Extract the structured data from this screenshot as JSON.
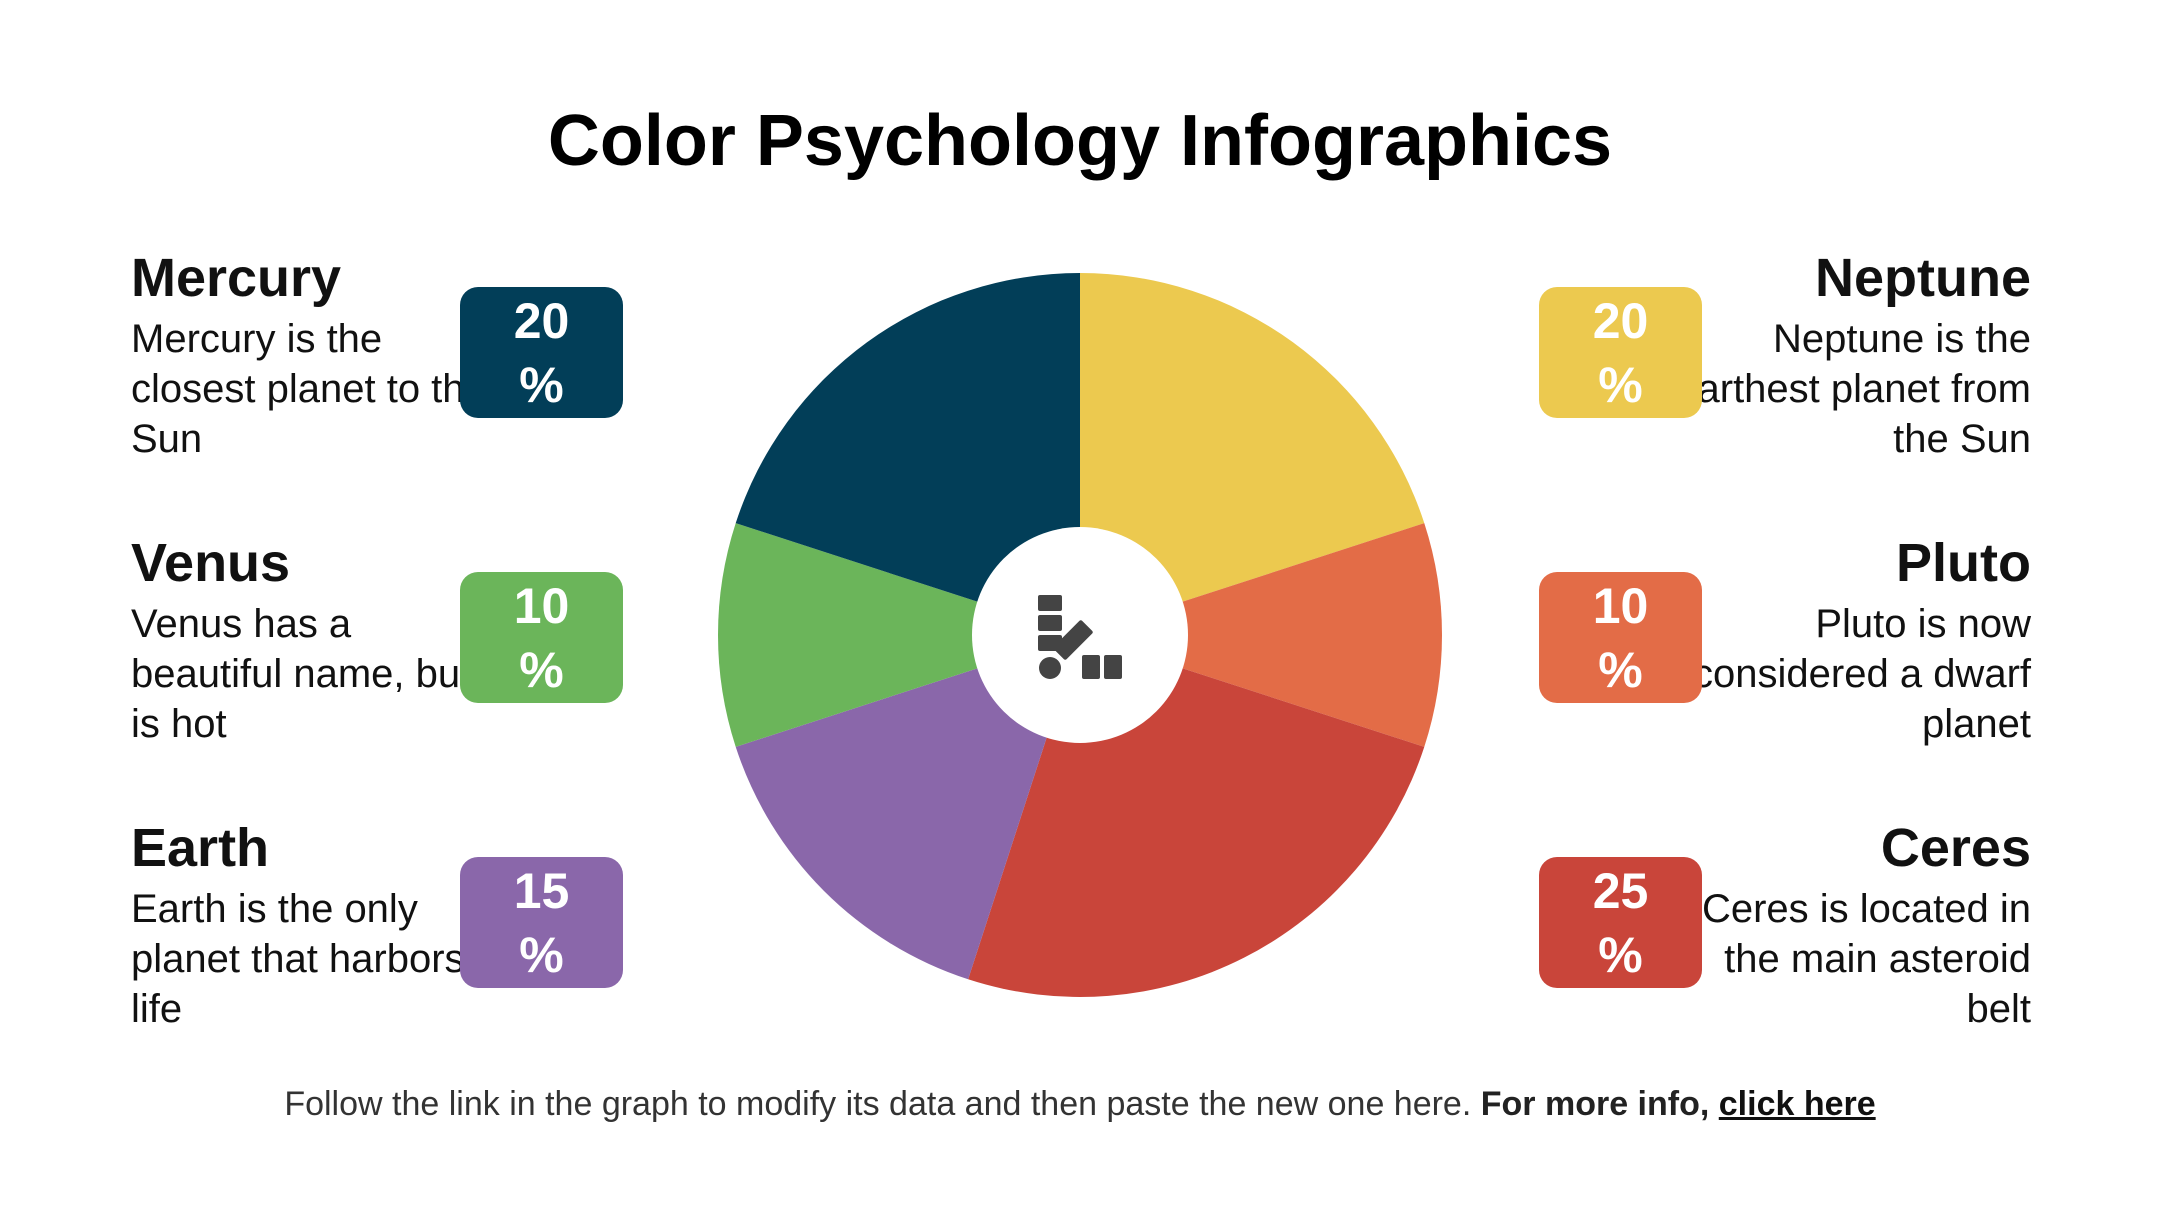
{
  "chart_data": {
    "type": "pie",
    "title": "Color Psychology Infographics",
    "categories": [
      "Mercury",
      "Venus",
      "Earth",
      "Neptune",
      "Pluto",
      "Ceres"
    ],
    "descriptions": [
      "Mercury is the closest planet to the Sun",
      "Venus has a beautiful name, but is hot",
      "Earth is the only planet that harbors life",
      "Neptune is the farthest planet from the Sun",
      "Pluto is now considered a dwarf planet",
      "Ceres is located in the main asteroid belt"
    ],
    "values": [
      20,
      10,
      15,
      20,
      10,
      25
    ],
    "value_labels": [
      "20 %",
      "10 %",
      "15 %",
      "20 %",
      "10 %",
      "25 %"
    ],
    "colors": [
      "#023e58",
      "#6bb55a",
      "#8a67aa",
      "#ecc94f",
      "#e36c47",
      "#c9453a"
    ]
  },
  "footer": {
    "text": "Follow the link in the graph to modify its data and then paste the new one here.",
    "bold": "For more info,",
    "link": "click here"
  }
}
